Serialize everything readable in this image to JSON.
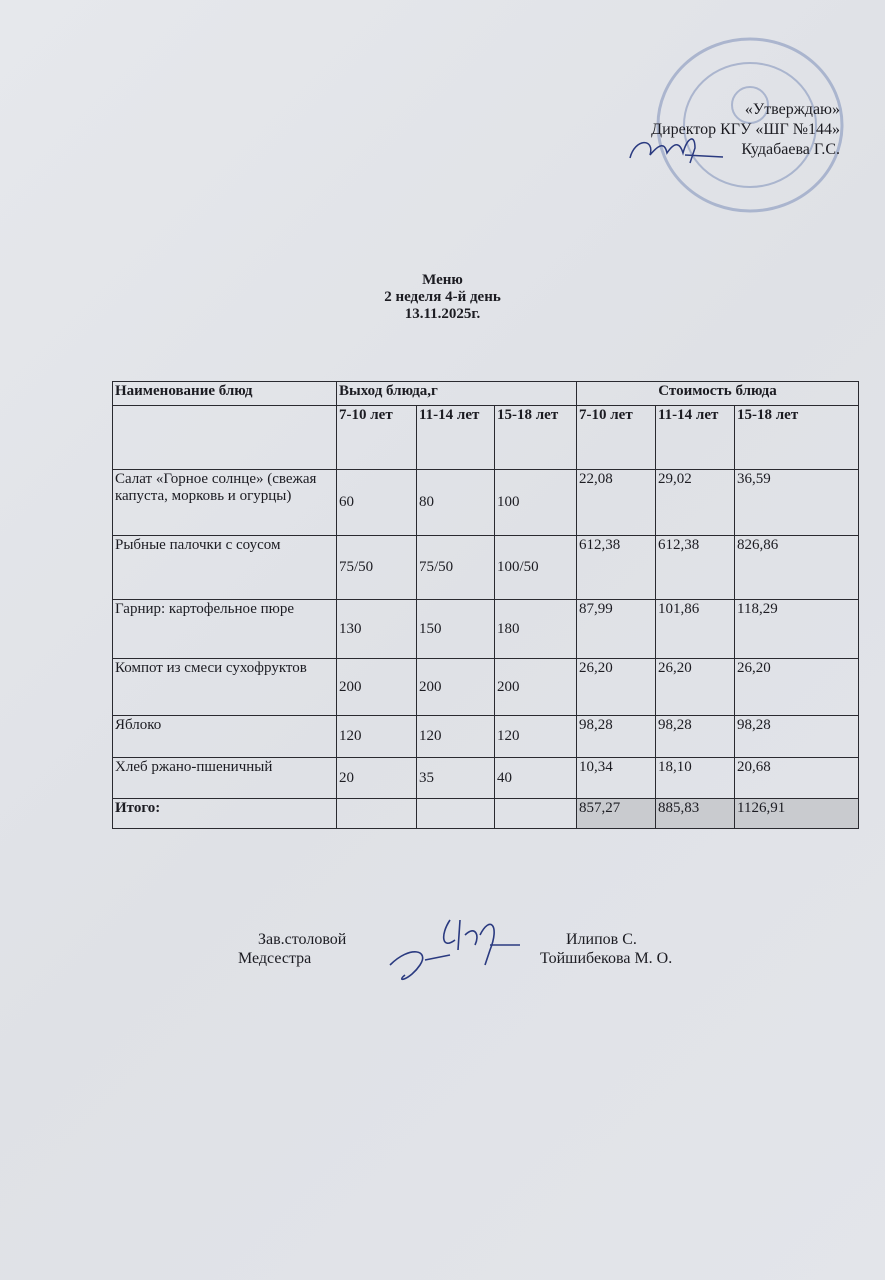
{
  "approval": {
    "line1": "«Утверждаю»",
    "line2": "Директор КГУ «ШГ №144»",
    "line3": "Кудабаева Г.С.",
    "stamp_color": "#6a7fb0"
  },
  "heading": {
    "title": "Меню",
    "subtitle": "2 неделя 4-й день",
    "date": "13.11.2025г."
  },
  "table": {
    "col_name": "Наименование блюд",
    "col_yield": "Выход блюда,г",
    "col_cost": "Стоимость блюда",
    "age_groups": [
      "7-10 лет",
      "11-14 лет",
      "15-18 лет",
      "7-10 лет",
      "11-14 лет",
      "15-18 лет"
    ],
    "rows": [
      {
        "name": "Салат «Горное солнце» (свежая капуста, морковь и огурцы)",
        "values": [
          "60",
          "80",
          "100",
          "22,08",
          "29,02",
          "36,59"
        ]
      },
      {
        "name": "Рыбные палочки с соусом",
        "values": [
          "75/50",
          "75/50",
          "100/50",
          "612,38",
          "612,38",
          "826,86"
        ]
      },
      {
        "name": "Гарнир:  картофельное пюре",
        "values": [
          "130",
          "150",
          "180",
          "87,99",
          "101,86",
          "118,29"
        ]
      },
      {
        "name": "Компот из смеси сухофруктов",
        "values": [
          "200",
          "200",
          "200",
          "26,20",
          "26,20",
          "26,20"
        ]
      },
      {
        "name": "Яблоко",
        "values": [
          "120",
          "120",
          "120",
          "98,28",
          "98,28",
          "98,28"
        ]
      },
      {
        "name": "Хлеб ржано-пшеничный",
        "values": [
          "20",
          "35",
          "40",
          "10,34",
          "18,10",
          "20,68"
        ]
      }
    ],
    "total": {
      "label": "Итого:",
      "values": [
        "",
        "",
        "",
        "857,27",
        "885,83",
        "1126,91"
      ]
    }
  },
  "signatures": {
    "role1": "Зав.столовой",
    "role2": "Медсестра",
    "name1": "Илипов С.",
    "name2": "Тойшибекова М. О."
  }
}
